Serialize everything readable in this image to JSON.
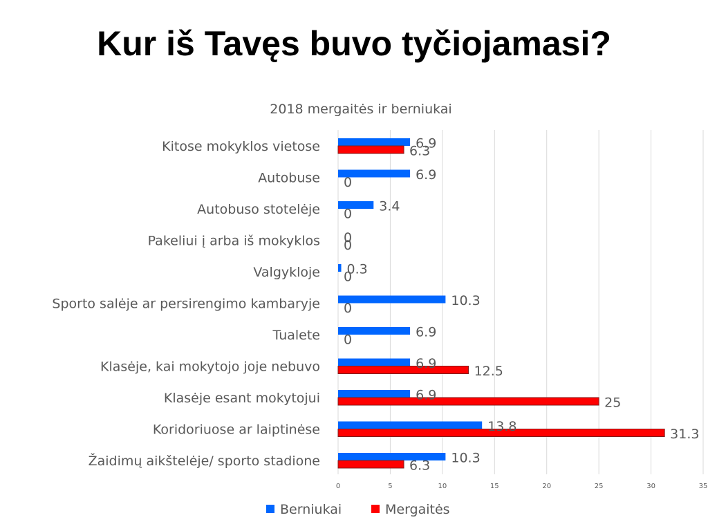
{
  "slide": {
    "title": "Kur iš Tavęs buvo tyčiojamasi?"
  },
  "colors": {
    "berniukai": "#0066FF",
    "mergaites": "#FF0000",
    "grid": "#D9D9D9",
    "text": "#595959"
  },
  "chart_data": {
    "type": "bar",
    "orientation": "horizontal",
    "title": "2018 mergaitės ir berniukai",
    "categories": [
      "Kitose mokyklos vietose",
      "Autobuse",
      "Autobuso stotelėje",
      "Pakeliui į arba iš mokyklos",
      "Valgykloje",
      "Sporto salėje ar persirengimo kambaryje",
      "Tualete",
      "Klasėje, kai mokytojo joje nebuvo",
      "Klasėje esant mokytojui",
      "Koridoriuose ar laiptinėse",
      "Žaidimų aikštelėje/ sporto stadione"
    ],
    "series": [
      {
        "name": "Berniukai",
        "values": [
          6.9,
          6.9,
          3.4,
          0,
          0.3,
          10.3,
          6.9,
          6.9,
          6.9,
          13.8,
          10.3
        ]
      },
      {
        "name": "Mergaitės",
        "values": [
          6.3,
          0,
          0,
          0,
          0,
          0,
          0,
          12.5,
          25,
          31.3,
          6.3
        ]
      }
    ],
    "xlim": [
      0,
      35
    ],
    "xticks": [
      0,
      5,
      10,
      15,
      20,
      25,
      30,
      35
    ],
    "grid": true,
    "legend": "bottom"
  }
}
